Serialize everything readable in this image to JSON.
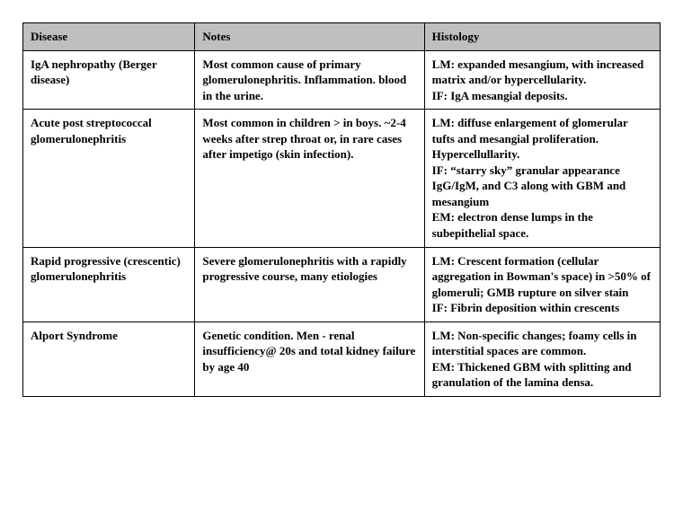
{
  "table": {
    "columns": [
      "Disease",
      "Notes",
      "Histology"
    ],
    "rows": [
      {
        "disease": "IgA nephropathy (Berger disease)",
        "notes": "Most common cause of primary glomerulonephritis. Inflammation. blood in the urine.",
        "histology": "LM: expanded mesangium, with increased matrix and/or hypercellularity.\nIF: IgA mesangial deposits."
      },
      {
        "disease": "Acute post streptococcal glomerulonephritis",
        "notes": "Most common in children > in boys. ~2-4 weeks after strep throat or, in rare cases after impetigo (skin infection).",
        "histology": "LM: diffuse enlargement of glomerular tufts and mesangial proliferation. Hypercellullarity.\nIF: “starry sky” granular appearance IgG/IgM, and C3 along with GBM and mesangium\nEM: electron dense lumps in the subepithelial space."
      },
      {
        "disease": "Rapid progressive (crescentic) glomerulonephritis",
        "notes": "Severe glomerulonephritis with a rapidly progressive course, many etiologies",
        "histology": "LM: Crescent formation (cellular aggregation in Bowman's space) in >50% of glomeruli; GMB rupture on silver stain\nIF: Fibrin deposition within crescents"
      },
      {
        "disease": "Alport Syndrome",
        "notes": "Genetic condition. Men - renal insufficiency@ 20s and total kidney failure by age 40",
        "histology": "LM: Non-specific changes; foamy cells in interstitial spaces are common.\nEM: Thickened GBM with splitting and granulation of the lamina densa."
      }
    ],
    "header_bg": "#bfbfbf",
    "cell_bg": "#ffffff",
    "border_color": "#000000",
    "font_family": "Georgia, 'Times New Roman', serif",
    "font_size": 13,
    "font_weight": "bold",
    "col_widths_pct": [
      27,
      36,
      37
    ]
  }
}
